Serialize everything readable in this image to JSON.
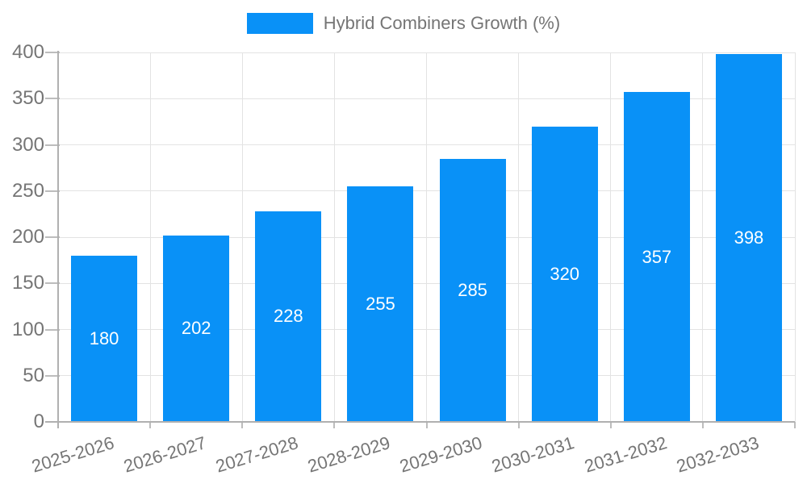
{
  "chart_data": {
    "type": "bar",
    "title": "Hybrid Combiners Growth (%)",
    "categories": [
      "2025-2026",
      "2026-2027",
      "2027-2028",
      "2028-2029",
      "2029-2030",
      "2030-2031",
      "2031-2032",
      "2032-2033"
    ],
    "series": [
      {
        "name": "Hybrid Combiners Growth (%)",
        "values": [
          180,
          202,
          228,
          255,
          285,
          320,
          357,
          398
        ]
      }
    ],
    "bar_value_labels": [
      "180",
      "202",
      "228",
      "255",
      "285",
      "320",
      "357",
      "398"
    ],
    "yticks": [
      0,
      50,
      100,
      150,
      200,
      250,
      300,
      350,
      400
    ],
    "ylim": [
      0,
      400
    ],
    "xlabel": "",
    "ylabel": "",
    "legend_position": "top",
    "grid": true,
    "x_label_rotation_deg": -17
  },
  "colors": {
    "bar": "#0991f7",
    "bar_label": "#ffffff",
    "tick_label": "#757575",
    "legend_text": "#757575",
    "grid_line": "#e3e3e3",
    "axis_line": "#b0b0b0",
    "tick_mark": "#bdbdbd",
    "background": "#ffffff"
  }
}
